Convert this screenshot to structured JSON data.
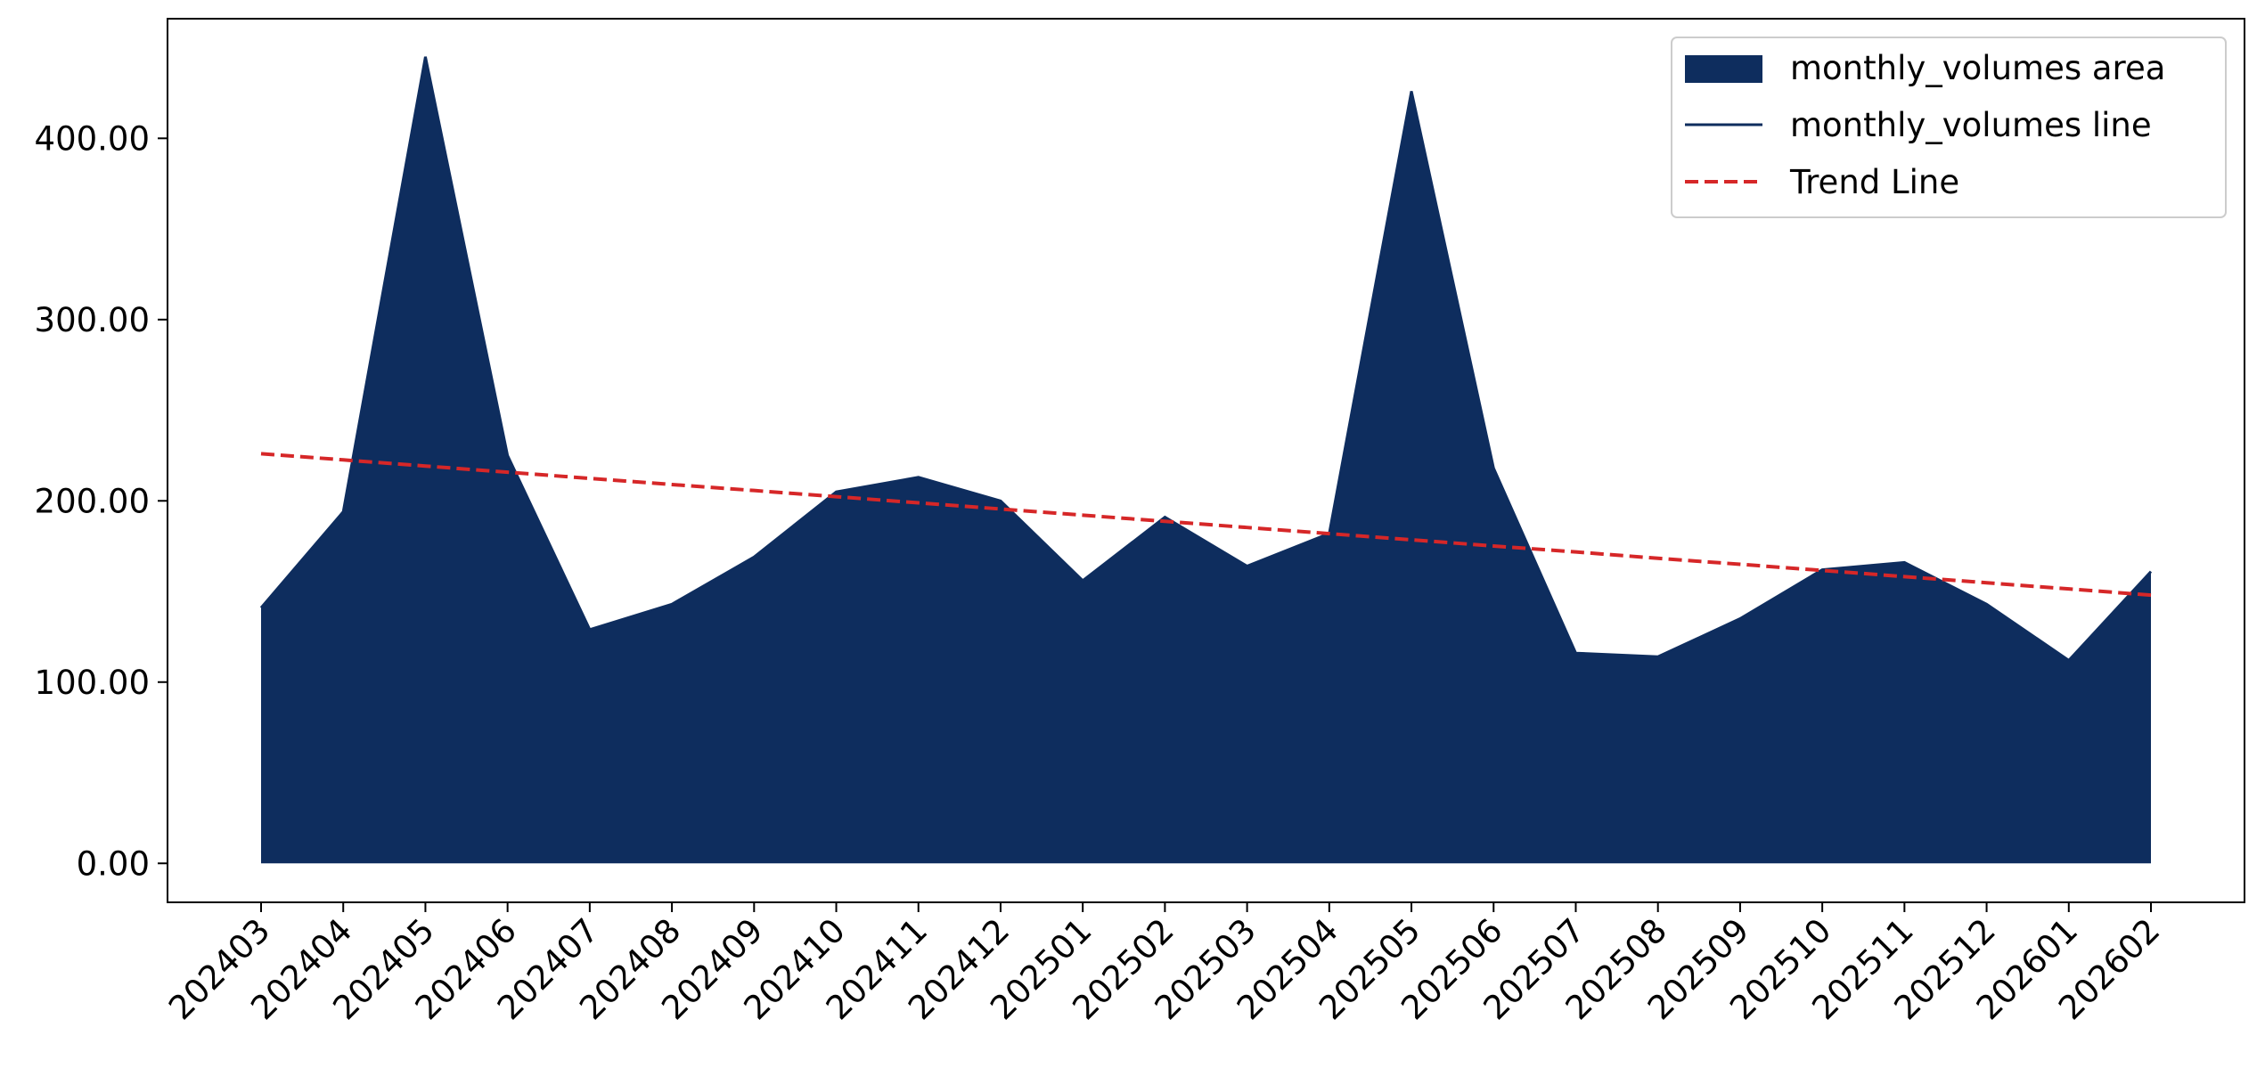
{
  "chart_data": {
    "type": "area",
    "categories": [
      "202403",
      "202404",
      "202405",
      "202406",
      "202407",
      "202408",
      "202409",
      "202410",
      "202411",
      "202412",
      "202501",
      "202502",
      "202503",
      "202504",
      "202505",
      "202506",
      "202507",
      "202508",
      "202509",
      "202510",
      "202511",
      "202512",
      "202601",
      "202602"
    ],
    "series": [
      {
        "name": "monthly_volumes area",
        "color": "#0e2d5e",
        "kind": "area",
        "values": [
          141,
          194,
          445,
          225,
          129,
          143,
          169,
          205,
          213,
          200,
          156,
          191,
          164,
          182,
          426,
          218,
          116,
          114,
          135,
          162,
          166,
          143,
          112,
          161
        ]
      },
      {
        "name": "monthly_volumes line",
        "color": "#0e2d5e",
        "kind": "line",
        "values": [
          141,
          194,
          445,
          225,
          129,
          143,
          169,
          205,
          213,
          200,
          156,
          191,
          164,
          182,
          426,
          218,
          116,
          114,
          135,
          162,
          166,
          143,
          112,
          161
        ]
      },
      {
        "name": "Trend Line",
        "color": "#d62728",
        "kind": "line",
        "dashed": true,
        "values": [
          226,
          222.6,
          219.2,
          215.8,
          212.4,
          209.0,
          205.7,
          202.3,
          198.9,
          195.5,
          192.1,
          188.7,
          185.3,
          181.9,
          178.5,
          175.1,
          171.8,
          168.3,
          165.0,
          161.6,
          158.2,
          154.8,
          151.4,
          148.0
        ]
      }
    ],
    "ylim": [
      -21.5,
      466
    ],
    "yticks": [
      {
        "value": 0,
        "label": "0.00"
      },
      {
        "value": 100,
        "label": "100.00"
      },
      {
        "value": 200,
        "label": "200.00"
      },
      {
        "value": 300,
        "label": "300.00"
      },
      {
        "value": 400,
        "label": "400.00"
      }
    ],
    "legend": "upper right"
  }
}
